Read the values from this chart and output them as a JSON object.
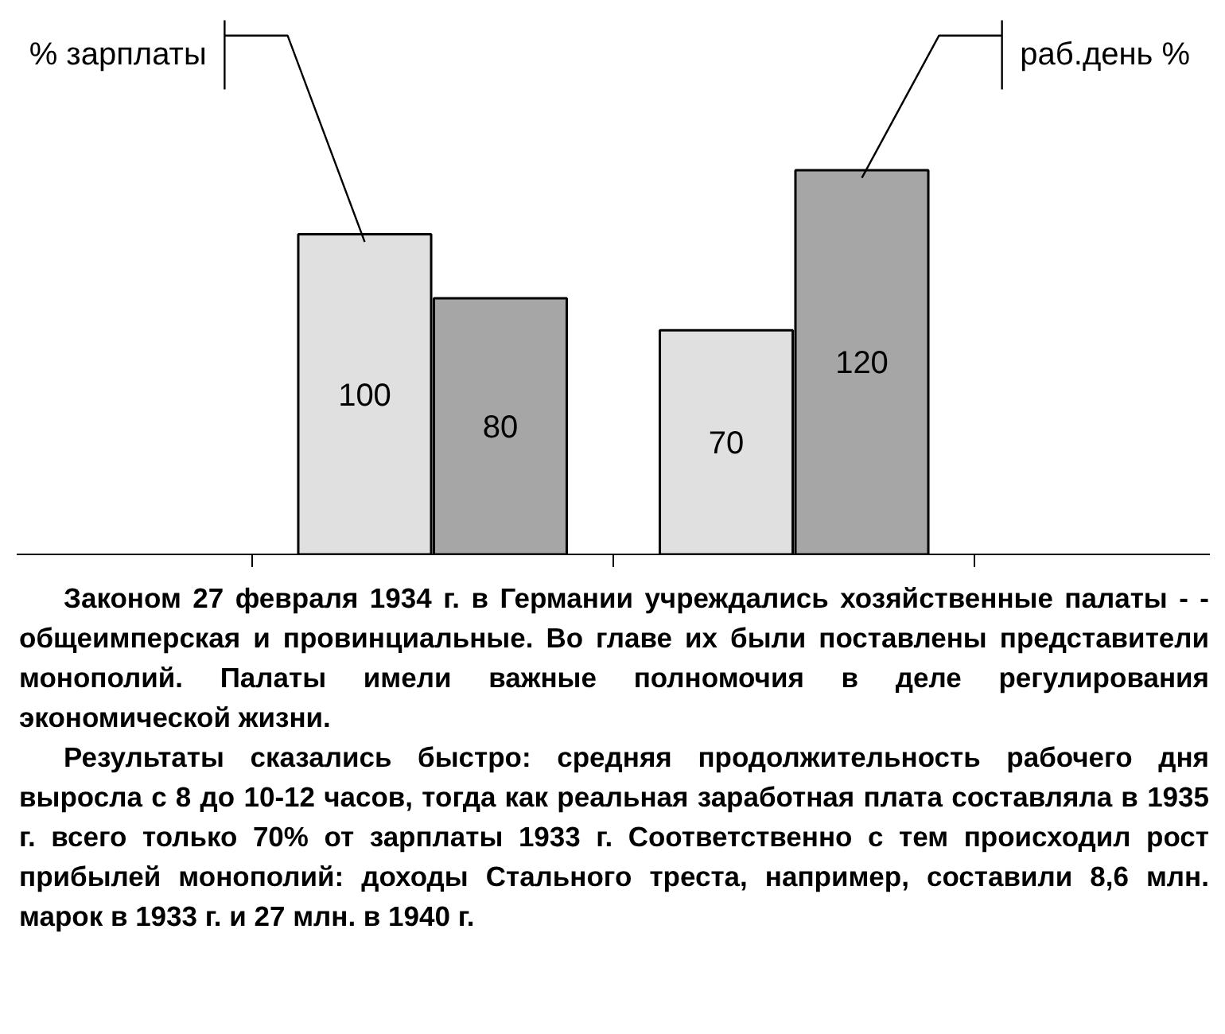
{
  "chart_data": {
    "type": "bar",
    "categories": [
      null,
      null
    ],
    "series": [
      {
        "name": "% зарплаты",
        "color": "#e0e0e0",
        "values": [
          100,
          70
        ]
      },
      {
        "name": "раб.день %",
        "color": "#a6a6a6",
        "values": [
          80,
          120
        ]
      }
    ],
    "data_labels": true,
    "tick_labels": false,
    "annotations": [
      "Законом 27 февраля 1934 г. в Германии учреждались хозяйственные палаты - - общеимперская и провинциальные. Во главе их были поставлены представители монополий. Палаты имели важные полномочия в деле регулирования экономической жизни.",
      "Результаты сказались быстро: средняя продолжительность рабочего дня выросла с 8 до 10-12 часов, тогда как реальная заработная плата составляла в 1935 г. всего только 70% от зарплаты 1933 г. Соответственно с тем происходил рост прибылей монополий: доходы Стального треста, например, составили 8,6 млн. марок в 1933 г. и 27 млн. в 1940 г."
    ]
  }
}
